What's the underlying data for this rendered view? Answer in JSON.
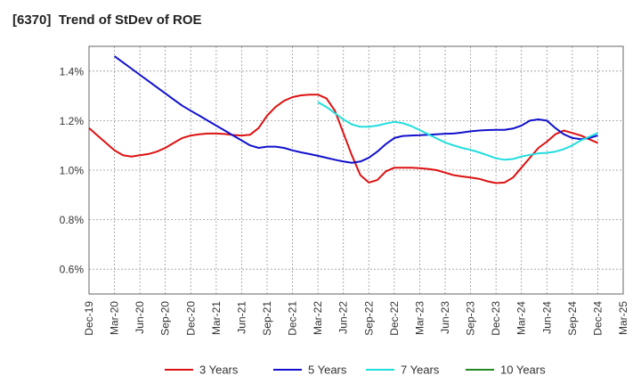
{
  "chart_data": {
    "type": "line",
    "title": "[6370]  Trend of StDev of ROE",
    "xlabel": "",
    "ylabel": "",
    "x_ticks": [
      "Dec-19",
      "Mar-20",
      "Jun-20",
      "Sep-20",
      "Dec-20",
      "Mar-21",
      "Jun-21",
      "Sep-21",
      "Dec-21",
      "Mar-22",
      "Jun-22",
      "Sep-22",
      "Dec-22",
      "Mar-23",
      "Jun-23",
      "Sep-23",
      "Dec-23",
      "Mar-24",
      "Jun-24",
      "Sep-24",
      "Dec-24",
      "Mar-25"
    ],
    "y_ticks": [
      "0.6%",
      "0.8%",
      "1.0%",
      "1.2%",
      "1.4%"
    ],
    "ylim": [
      0.5,
      1.5
    ],
    "y_tick_values": [
      0.6,
      0.8,
      1.0,
      1.2,
      1.4
    ],
    "grid": true,
    "legend_position": "bottom",
    "series": [
      {
        "name": "3 Years",
        "color": "#dd1111",
        "points": [
          [
            "Dec-19",
            1.17
          ],
          [
            "Jan-20",
            1.14
          ],
          [
            "Feb-20",
            1.11
          ],
          [
            "Mar-20",
            1.08
          ],
          [
            "Apr-20",
            1.06
          ],
          [
            "May-20",
            1.055
          ],
          [
            "Jun-20",
            1.06
          ],
          [
            "Jul-20",
            1.065
          ],
          [
            "Aug-20",
            1.075
          ],
          [
            "Sep-20",
            1.09
          ],
          [
            "Oct-20",
            1.11
          ],
          [
            "Nov-20",
            1.13
          ],
          [
            "Dec-20",
            1.14
          ],
          [
            "Jan-21",
            1.145
          ],
          [
            "Feb-21",
            1.148
          ],
          [
            "Mar-21",
            1.148
          ],
          [
            "Apr-21",
            1.146
          ],
          [
            "May-21",
            1.142
          ],
          [
            "Jun-21",
            1.14
          ],
          [
            "Jul-21",
            1.143
          ],
          [
            "Aug-21",
            1.17
          ],
          [
            "Sep-21",
            1.22
          ],
          [
            "Oct-21",
            1.255
          ],
          [
            "Nov-21",
            1.28
          ],
          [
            "Dec-21",
            1.295
          ],
          [
            "Jan-22",
            1.302
          ],
          [
            "Feb-22",
            1.305
          ],
          [
            "Mar-22",
            1.305
          ],
          [
            "Apr-22",
            1.29
          ],
          [
            "May-22",
            1.24
          ],
          [
            "Jun-22",
            1.15
          ],
          [
            "Jul-22",
            1.06
          ],
          [
            "Aug-22",
            0.98
          ],
          [
            "Sep-22",
            0.95
          ],
          [
            "Oct-22",
            0.96
          ],
          [
            "Nov-22",
            0.995
          ],
          [
            "Dec-22",
            1.01
          ],
          [
            "Jan-23",
            1.01
          ],
          [
            "Feb-23",
            1.01
          ],
          [
            "Mar-23",
            1.008
          ],
          [
            "Apr-23",
            1.005
          ],
          [
            "May-23",
            1.0
          ],
          [
            "Jun-23",
            0.99
          ],
          [
            "Jul-23",
            0.98
          ],
          [
            "Aug-23",
            0.975
          ],
          [
            "Sep-23",
            0.97
          ],
          [
            "Oct-23",
            0.965
          ],
          [
            "Nov-23",
            0.955
          ],
          [
            "Dec-23",
            0.948
          ],
          [
            "Jan-24",
            0.95
          ],
          [
            "Feb-24",
            0.97
          ],
          [
            "Mar-24",
            1.01
          ],
          [
            "Apr-24",
            1.05
          ],
          [
            "May-24",
            1.09
          ],
          [
            "Jun-24",
            1.115
          ],
          [
            "Jul-24",
            1.145
          ],
          [
            "Aug-24",
            1.16
          ],
          [
            "Sep-24",
            1.15
          ],
          [
            "Oct-24",
            1.14
          ],
          [
            "Nov-24",
            1.125
          ],
          [
            "Dec-24",
            1.11
          ]
        ]
      },
      {
        "name": "5 Years",
        "color": "#1111cc",
        "points": [
          [
            "Mar-20",
            1.46
          ],
          [
            "Apr-20",
            1.435
          ],
          [
            "May-20",
            1.41
          ],
          [
            "Jun-20",
            1.385
          ],
          [
            "Jul-20",
            1.36
          ],
          [
            "Aug-20",
            1.335
          ],
          [
            "Sep-20",
            1.31
          ],
          [
            "Oct-20",
            1.285
          ],
          [
            "Nov-20",
            1.26
          ],
          [
            "Dec-20",
            1.24
          ],
          [
            "Jan-21",
            1.22
          ],
          [
            "Feb-21",
            1.2
          ],
          [
            "Mar-21",
            1.18
          ],
          [
            "Apr-21",
            1.16
          ],
          [
            "May-21",
            1.14
          ],
          [
            "Jun-21",
            1.12
          ],
          [
            "Jul-21",
            1.1
          ],
          [
            "Aug-21",
            1.09
          ],
          [
            "Sep-21",
            1.095
          ],
          [
            "Oct-21",
            1.095
          ],
          [
            "Nov-21",
            1.09
          ],
          [
            "Dec-21",
            1.08
          ],
          [
            "Jan-22",
            1.072
          ],
          [
            "Feb-22",
            1.065
          ],
          [
            "Mar-22",
            1.058
          ],
          [
            "Apr-22",
            1.05
          ],
          [
            "May-22",
            1.042
          ],
          [
            "Jun-22",
            1.035
          ],
          [
            "Jul-22",
            1.03
          ],
          [
            "Aug-22",
            1.035
          ],
          [
            "Sep-22",
            1.05
          ],
          [
            "Oct-22",
            1.075
          ],
          [
            "Nov-22",
            1.105
          ],
          [
            "Dec-22",
            1.13
          ],
          [
            "Jan-23",
            1.138
          ],
          [
            "Feb-23",
            1.14
          ],
          [
            "Mar-23",
            1.141
          ],
          [
            "Apr-23",
            1.143
          ],
          [
            "May-23",
            1.145
          ],
          [
            "Jun-23",
            1.147
          ],
          [
            "Jul-23",
            1.148
          ],
          [
            "Aug-23",
            1.152
          ],
          [
            "Sep-23",
            1.157
          ],
          [
            "Oct-23",
            1.16
          ],
          [
            "Nov-23",
            1.162
          ],
          [
            "Dec-23",
            1.163
          ],
          [
            "Jan-24",
            1.163
          ],
          [
            "Feb-24",
            1.168
          ],
          [
            "Mar-24",
            1.18
          ],
          [
            "Apr-24",
            1.2
          ],
          [
            "May-24",
            1.205
          ],
          [
            "Jun-24",
            1.2
          ],
          [
            "Jul-24",
            1.17
          ],
          [
            "Aug-24",
            1.145
          ],
          [
            "Sep-24",
            1.13
          ],
          [
            "Oct-24",
            1.125
          ],
          [
            "Nov-24",
            1.13
          ],
          [
            "Dec-24",
            1.14
          ]
        ]
      },
      {
        "name": "7 Years",
        "color": "#22dddd",
        "points": [
          [
            "Mar-22",
            1.275
          ],
          [
            "Apr-22",
            1.255
          ],
          [
            "May-22",
            1.23
          ],
          [
            "Jun-22",
            1.205
          ],
          [
            "Jul-22",
            1.185
          ],
          [
            "Aug-22",
            1.175
          ],
          [
            "Sep-22",
            1.175
          ],
          [
            "Oct-22",
            1.18
          ],
          [
            "Nov-22",
            1.188
          ],
          [
            "Dec-22",
            1.195
          ],
          [
            "Jan-23",
            1.19
          ],
          [
            "Feb-23",
            1.178
          ],
          [
            "Mar-23",
            1.162
          ],
          [
            "Apr-23",
            1.145
          ],
          [
            "May-23",
            1.128
          ],
          [
            "Jun-23",
            1.112
          ],
          [
            "Jul-23",
            1.1
          ],
          [
            "Aug-23",
            1.09
          ],
          [
            "Sep-23",
            1.082
          ],
          [
            "Oct-23",
            1.072
          ],
          [
            "Nov-23",
            1.06
          ],
          [
            "Dec-23",
            1.048
          ],
          [
            "Jan-24",
            1.042
          ],
          [
            "Feb-24",
            1.045
          ],
          [
            "Mar-24",
            1.055
          ],
          [
            "Apr-24",
            1.062
          ],
          [
            "May-24",
            1.068
          ],
          [
            "Jun-24",
            1.07
          ],
          [
            "Jul-24",
            1.075
          ],
          [
            "Aug-24",
            1.085
          ],
          [
            "Sep-24",
            1.1
          ],
          [
            "Oct-24",
            1.12
          ],
          [
            "Nov-24",
            1.135
          ],
          [
            "Dec-24",
            1.15
          ]
        ]
      },
      {
        "name": "10 Years",
        "color": "#228822",
        "points": []
      }
    ]
  }
}
